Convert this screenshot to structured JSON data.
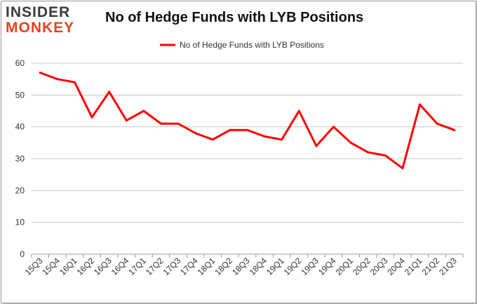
{
  "logo": {
    "line1": "INSIDER",
    "line2": "MONKEY"
  },
  "chart_data": {
    "type": "line",
    "title": "No of Hedge Funds with LYB Positions",
    "categories": [
      "15Q3",
      "15Q4",
      "16Q1",
      "16Q2",
      "16Q3",
      "16Q4",
      "17Q1",
      "17Q2",
      "17Q3",
      "17Q4",
      "18Q1",
      "18Q2",
      "18Q3",
      "18Q4",
      "19Q1",
      "19Q2",
      "19Q3",
      "19Q4",
      "20Q1",
      "20Q2",
      "20Q3",
      "20Q4",
      "21Q1",
      "21Q2",
      "21Q3"
    ],
    "series": [
      {
        "name": "No of Hedge Funds with LYB Positions",
        "color": "#ff0000",
        "values": [
          57,
          55,
          54,
          43,
          51,
          42,
          45,
          41,
          41,
          38,
          36,
          39,
          39,
          37,
          36,
          45,
          34,
          40,
          35,
          32,
          31,
          27,
          47,
          41,
          39
        ]
      }
    ],
    "ylim": [
      0,
      60
    ],
    "yticks": [
      0,
      10,
      20,
      30,
      40,
      50,
      60
    ],
    "grid": true,
    "legend": "top-center",
    "xlabel": "",
    "ylabel": ""
  }
}
